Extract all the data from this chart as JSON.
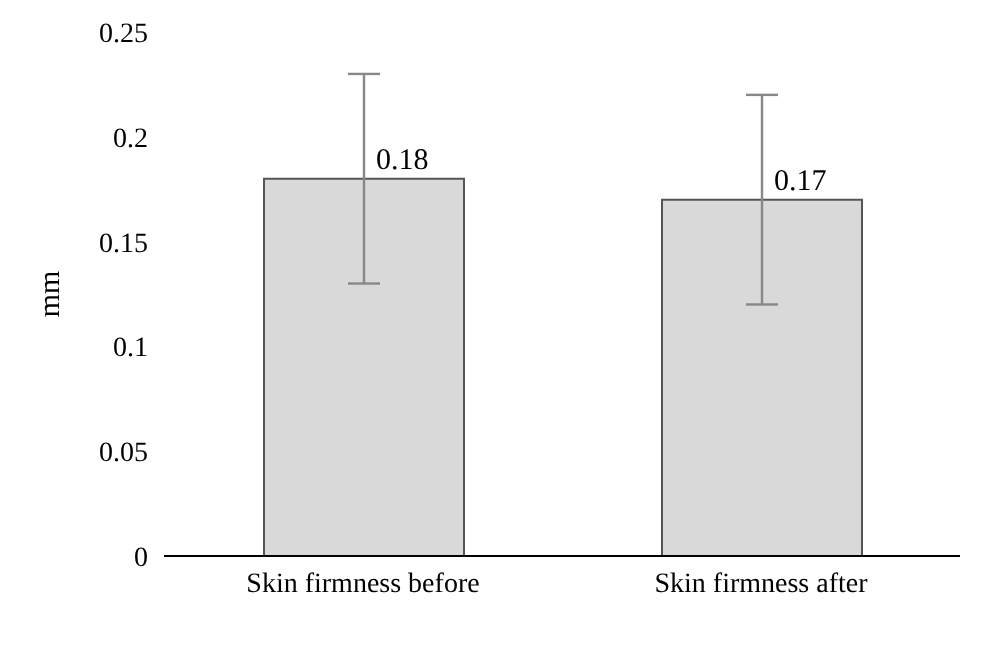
{
  "chart_data": {
    "type": "bar",
    "ylabel": "mm",
    "categories": [
      "Skin firmness before",
      "Skin firmness after"
    ],
    "values": [
      0.18,
      0.17
    ],
    "errors": [
      0.05,
      0.05
    ],
    "color": "#d9d9d9",
    "data_labels": true,
    "ylim": [
      0,
      0.25
    ],
    "yticks": [
      0,
      0.05,
      0.1,
      0.15,
      0.2,
      0.25
    ],
    "grid": false
  }
}
